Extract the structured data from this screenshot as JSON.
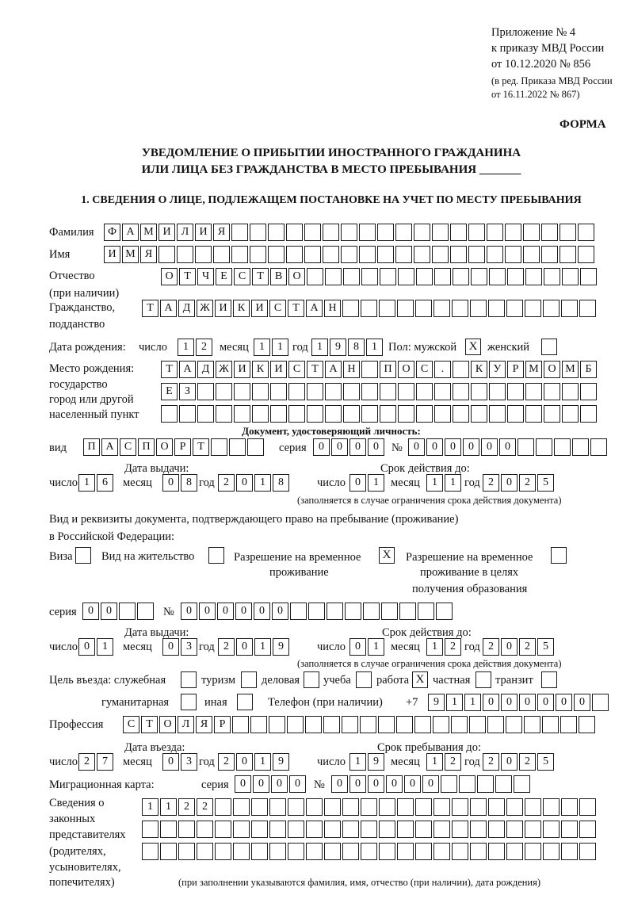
{
  "header": {
    "line1": "Приложение № 4",
    "line2": "к приказу МВД России",
    "line3": "от 10.12.2020 № 856",
    "line4": "(в ред. Приказа МВД России",
    "line5": "от 16.11.2022 № 867)",
    "form_label": "ФОРМА"
  },
  "title": {
    "line1": "УВЕДОМЛЕНИЕ О ПРИБЫТИИ ИНОСТРАННОГО ГРАЖДАНИНА",
    "line2": "ИЛИ ЛИЦА БЕЗ ГРАЖДАНСТВА В МЕСТО ПРЕБЫВАНИЯ _______"
  },
  "section1": "1. СВЕДЕНИЯ О ЛИЦЕ, ПОДЛЕЖАЩЕМ ПОСТАНОВКЕ НА УЧЕТ ПО МЕСТУ ПРЕБЫВАНИЯ",
  "labels": {
    "surname": "Фамилия",
    "name": "Имя",
    "patronymic1": "Отчество",
    "patronymic2": "(при наличии)",
    "citizenship1": "Гражданство,",
    "citizenship2": "подданство",
    "birth_date": "Дата рождения:",
    "day": "число",
    "month": "месяц",
    "year": "год",
    "sex_male": "Пол: мужской",
    "sex_female": "женский",
    "birth_place1": "Место рождения:",
    "birth_place2": "государство",
    "birth_place3": "город или другой",
    "birth_place4": "населенный пункт",
    "id_doc": "Документ, удостоверяющий личность:",
    "kind": "вид",
    "series": "серия",
    "number": "№",
    "issue_date": "Дата выдачи:",
    "valid_until": "Срок действия до:",
    "limit_note": "(заполняется в случае ограничения срока действия документа)",
    "right_doc1": "Вид и реквизиты документа, подтверждающего право на пребывание (проживание)",
    "right_doc2": "в Российской Федерации:",
    "visa": "Виза",
    "residence": "Вид на жительство",
    "trp1": "Разрешение на временное",
    "trp2": "проживание",
    "trp_edu1": "Разрешение на временное",
    "trp_edu2": "проживание в целях",
    "trp_edu3": "получения образования",
    "purpose": "Цель въезда: служебная",
    "tourism": "туризм",
    "business": "деловая",
    "study": "учеба",
    "work": "работа",
    "private": "частная",
    "transit": "транзит",
    "humanitarian": "гуманитарная",
    "other": "иная",
    "phone": "Телефон (при наличии)",
    "phone_prefix": "+7",
    "profession": "Профессия",
    "entry_date": "Дата въезда:",
    "stay_until": "Срок пребывания до:",
    "migration_card": "Миграционная карта:",
    "reps1": "Сведения о",
    "reps2": "законных",
    "reps3": "представителях",
    "reps4": "(родителях,",
    "reps5": "усыновителях,",
    "reps6": "попечителях)",
    "reps_note": "(при заполнении указываются фамилия, имя, отчество (при наличии), дата рождения)"
  },
  "fields": {
    "surname": "ФАМИЛИЯ",
    "name": "ИМЯ",
    "patronymic": "ОТЧЕСТВО",
    "citizenship": "ТАДЖИКИСТАН",
    "birth_day": "12",
    "birth_month": "11",
    "birth_year": "1981",
    "sex_male": true,
    "sex_female": false,
    "birth_place_1": "ТАДЖИКИСТАН ПОС. КУРМОМБ",
    "birth_place_2": "ЕЗ",
    "birth_place_3": "",
    "doc_kind": "ПАСПОРТ",
    "doc_series": "0000",
    "doc_number": "000000",
    "doc_issue_day": "16",
    "doc_issue_month": "08",
    "doc_issue_year": "2018",
    "doc_valid_day": "01",
    "doc_valid_month": "11",
    "doc_valid_year": "2025",
    "visa": false,
    "residence_permit": false,
    "temp_residence": true,
    "temp_residence_edu": false,
    "right_series": "00",
    "right_number": "000000",
    "right_issue_day": "01",
    "right_issue_month": "03",
    "right_issue_year": "2019",
    "right_valid_day": "01",
    "right_valid_month": "12",
    "right_valid_year": "2025",
    "purpose_official": false,
    "purpose_tourism": false,
    "purpose_business": false,
    "purpose_study": false,
    "purpose_work": true,
    "purpose_private": false,
    "purpose_transit": false,
    "purpose_humanitarian": false,
    "purpose_other": false,
    "phone": "911000000",
    "profession": "СТОЛЯР",
    "entry_day": "27",
    "entry_month": "03",
    "entry_year": "2019",
    "stay_day": "19",
    "stay_month": "12",
    "stay_year": "2025",
    "mc_series": "0000",
    "mc_number": "000000",
    "reps_1": "1122",
    "reps_2": "",
    "reps_3": ""
  }
}
